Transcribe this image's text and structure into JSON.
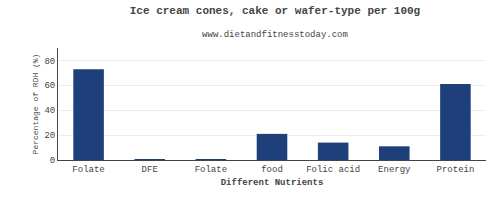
{
  "chart_data": {
    "type": "bar",
    "title": "Ice cream cones, cake or wafer-type per 100g",
    "subtitle": "www.dietandfitnesstoday.com",
    "xlabel": "Different Nutrients",
    "ylabel": "Percentage of RDH (%)",
    "categories": [
      "Folate",
      "DFE",
      "Folate",
      "food",
      "Folic acid",
      "Energy",
      "Protein"
    ],
    "values": [
      73,
      0.5,
      0.5,
      21,
      14,
      11,
      61
    ],
    "color": "#1F3F7A",
    "ylim": [
      0,
      90
    ],
    "yticks": [
      0,
      20,
      40,
      60,
      80
    ],
    "grid": true
  }
}
